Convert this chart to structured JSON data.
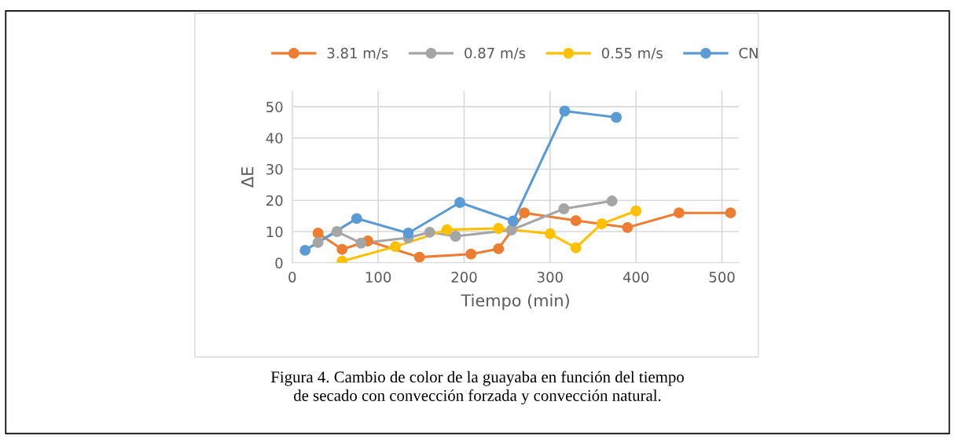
{
  "chart_data": {
    "type": "line",
    "xlabel": "Tiempo (min)",
    "ylabel": "ΔE",
    "xlim": [
      0,
      520
    ],
    "xticks": [
      0,
      100,
      200,
      300,
      400,
      500
    ],
    "ylim": [
      0,
      55
    ],
    "yticks": [
      0,
      10,
      20,
      30,
      40,
      50
    ],
    "grid": true,
    "legend": "top",
    "marker": "circle",
    "line_style": "solid",
    "series": [
      {
        "name": "3.81 m/s",
        "color": "#ed7d31",
        "x": [
          30,
          58,
          88,
          148,
          208,
          240,
          270,
          330,
          390,
          450,
          510
        ],
        "values": [
          9.5,
          4.3,
          7,
          1.8,
          2.8,
          4.5,
          16,
          13.5,
          11.3,
          16,
          16
        ]
      },
      {
        "name": "0.87 m/s",
        "color": "#a5a5a5",
        "x": [
          30,
          52,
          80,
          135,
          160,
          190,
          255,
          316,
          372
        ],
        "values": [
          6.5,
          10,
          6.3,
          8,
          9.8,
          8.5,
          10.5,
          17.3,
          19.8
        ]
      },
      {
        "name": "0.55 m/s",
        "color": "#ffc000",
        "x": [
          58,
          120,
          180,
          240,
          300,
          330,
          360,
          400
        ],
        "values": [
          0.5,
          5.2,
          10.6,
          11,
          9.3,
          4.8,
          12.5,
          16.6
        ]
      },
      {
        "name": "CN",
        "color": "#5b9bd5",
        "x": [
          15,
          75,
          135,
          195,
          257,
          317,
          377
        ],
        "values": [
          4,
          14.2,
          9.5,
          19.3,
          13.4,
          48.6,
          46.6
        ]
      }
    ],
    "annotations": [
      "Figura 4. Cambio de color de la guayaba en función del tiempo\nde secado con convección forzada y convección natural."
    ]
  }
}
